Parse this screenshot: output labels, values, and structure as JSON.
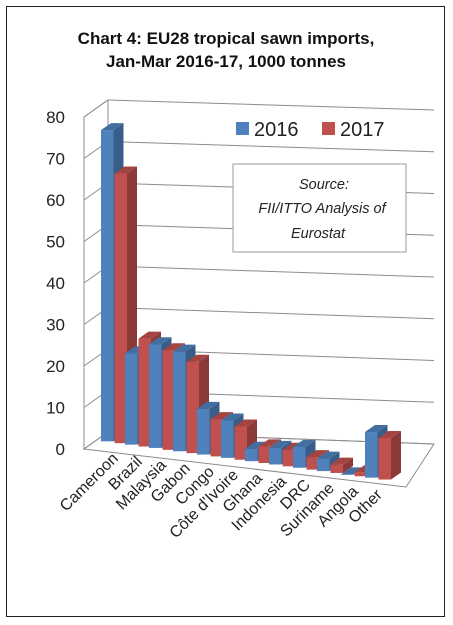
{
  "chart_data": {
    "type": "bar",
    "title_lines": [
      "Chart 4: EU28 tropical sawn imports,",
      "Jan-Mar 2016-17, 1000 tonnes"
    ],
    "categories": [
      "Cameroon",
      "Brazil",
      "Malaysia",
      "Gabon",
      "Congo",
      "Côte d'Ivoire",
      "Ghana",
      "Indonesia",
      "DRC",
      "Suriname",
      "Angola",
      "Other"
    ],
    "series": [
      {
        "name": "2016",
        "color": "#4f81bd",
        "values": [
          75,
          22,
          25,
          24,
          11,
          9,
          3,
          4,
          5,
          3,
          0,
          11
        ]
      },
      {
        "name": "2017",
        "color": "#c0504d",
        "values": [
          65,
          26,
          24,
          22,
          9,
          8,
          4,
          4,
          3,
          2,
          1,
          10
        ]
      }
    ],
    "ylim": [
      0,
      80
    ],
    "yticks": [
      "0",
      "10",
      "20",
      "30",
      "40",
      "50",
      "60",
      "70",
      "80"
    ],
    "grid": true,
    "legend_position": "top-right",
    "annotation_lines": [
      "Source:",
      "FII/ITTO Analysis of",
      "Eurostat"
    ]
  }
}
